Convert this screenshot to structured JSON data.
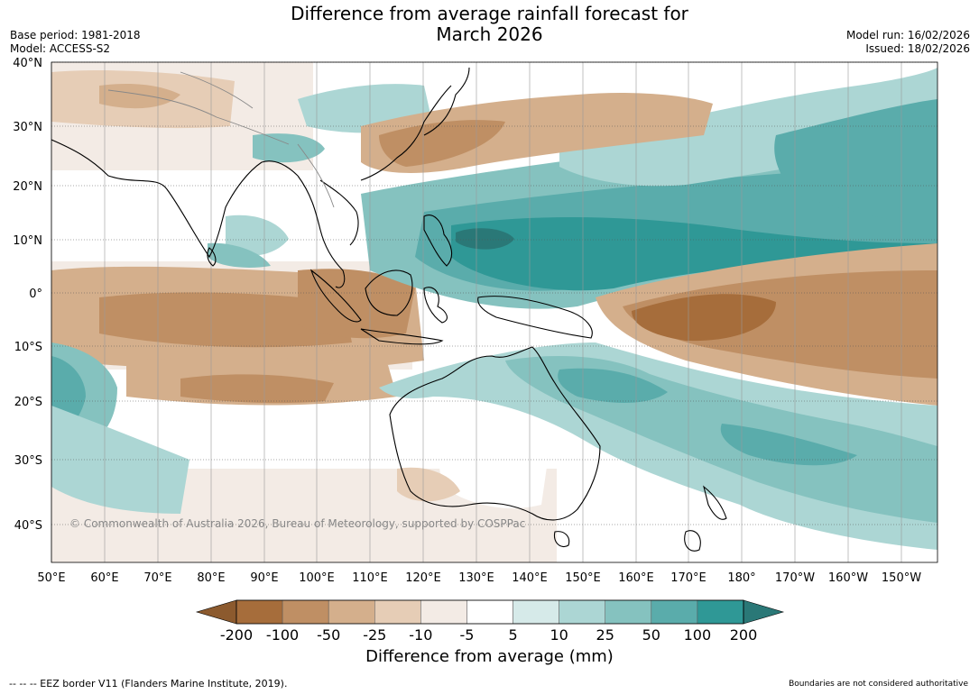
{
  "header": {
    "title_line1": "Difference from average rainfall forecast for",
    "title_line2": "March 2026",
    "base_period": "Base period: 1981-2018",
    "model": "Model: ACCESS-S2",
    "model_run": "Model run: 16/02/2026",
    "issued": "Issued: 18/02/2026"
  },
  "map": {
    "lat_labels": [
      "40°N",
      "30°N",
      "20°N",
      "10°N",
      "0°",
      "10°S",
      "20°S",
      "30°S",
      "40°S"
    ],
    "lon_labels": [
      "50°E",
      "60°E",
      "70°E",
      "80°E",
      "90°E",
      "100°E",
      "110°E",
      "120°E",
      "130°E",
      "140°E",
      "150°E",
      "160°E",
      "170°E",
      "180°",
      "170°W",
      "160°W",
      "150°W"
    ],
    "copyright": "© Commonwealth of Australia 2026, Bureau of Meteorology, supported by COSPPac"
  },
  "colorbar": {
    "label": "Difference from average (mm)",
    "ticks": [
      "-200",
      "-100",
      "-50",
      "-25",
      "-10",
      "-5",
      "5",
      "10",
      "25",
      "50",
      "100",
      "200"
    ],
    "colors": [
      "#8c5a2e",
      "#a66d3b",
      "#bf8f64",
      "#d4af8c",
      "#e6cdb6",
      "#f3ebe5",
      "#ffffff",
      "#d6eae9",
      "#acd6d4",
      "#85c2bf",
      "#5aacab",
      "#2f9896",
      "#2a7877"
    ]
  },
  "footer": {
    "eez": "--  --  -- EEZ border V11 (Flanders Marine Institute, 2019).",
    "boundaries": "Boundaries are not considered authoritative"
  }
}
